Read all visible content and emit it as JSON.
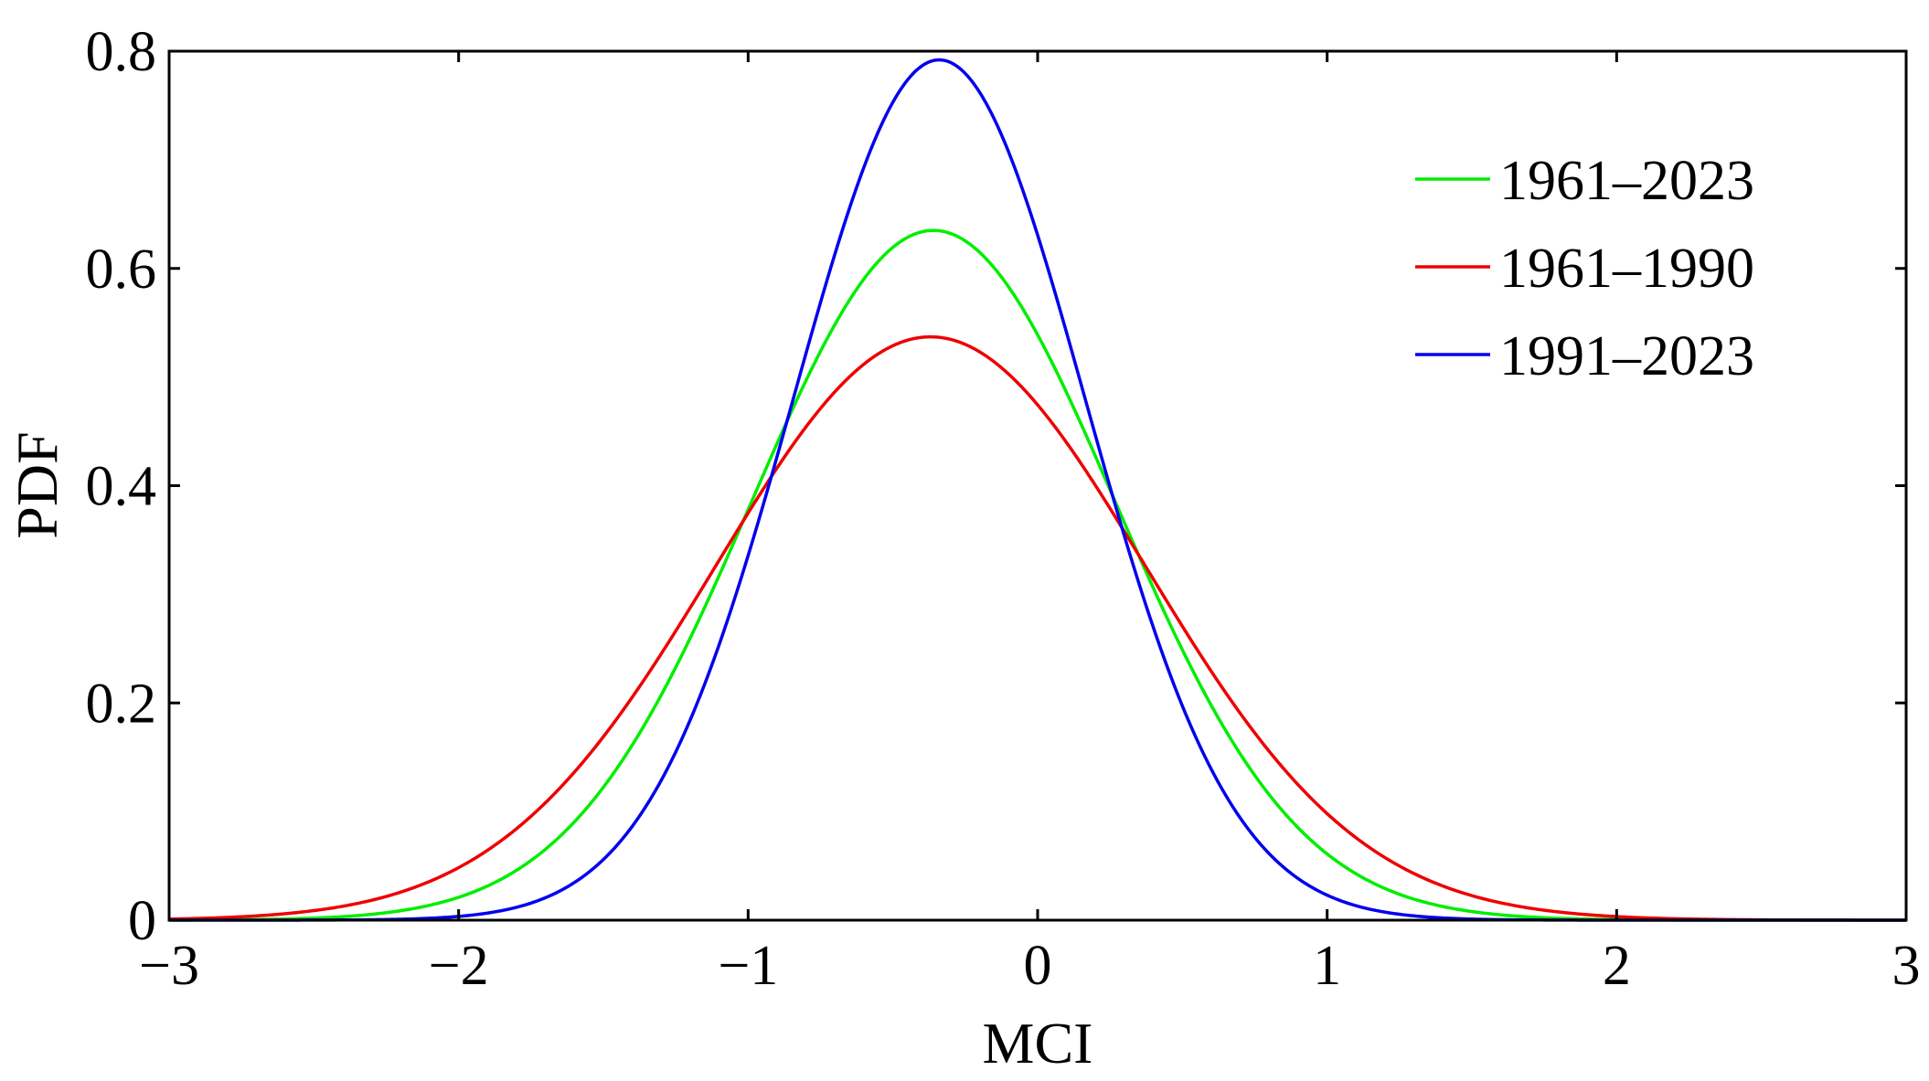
{
  "chart_data": {
    "type": "line",
    "title": "",
    "xlabel": "MCI",
    "ylabel": "PDF",
    "xlim": [
      -3,
      3
    ],
    "ylim": [
      0,
      0.8
    ],
    "xticks": [
      -3,
      -2,
      -1,
      0,
      1,
      2,
      3
    ],
    "xtick_labels": [
      "−3",
      "−2",
      "−1",
      "0",
      "1",
      "2",
      "3"
    ],
    "yticks": [
      0,
      0.2,
      0.4,
      0.6,
      0.8
    ],
    "ytick_labels": [
      "0",
      "0.2",
      "0.4",
      "0.6",
      "0.8"
    ],
    "legend_position": "top-right",
    "series": [
      {
        "name": "1961–2023",
        "color": "#00ee00",
        "peak_x": -0.36,
        "peak_y": 0.635
      },
      {
        "name": "1961–1990",
        "color": "#ee0000",
        "peak_x": -0.37,
        "peak_y": 0.537
      },
      {
        "name": "1991–2023",
        "color": "#0000ee",
        "peak_x": -0.34,
        "peak_y": 0.792
      }
    ]
  }
}
